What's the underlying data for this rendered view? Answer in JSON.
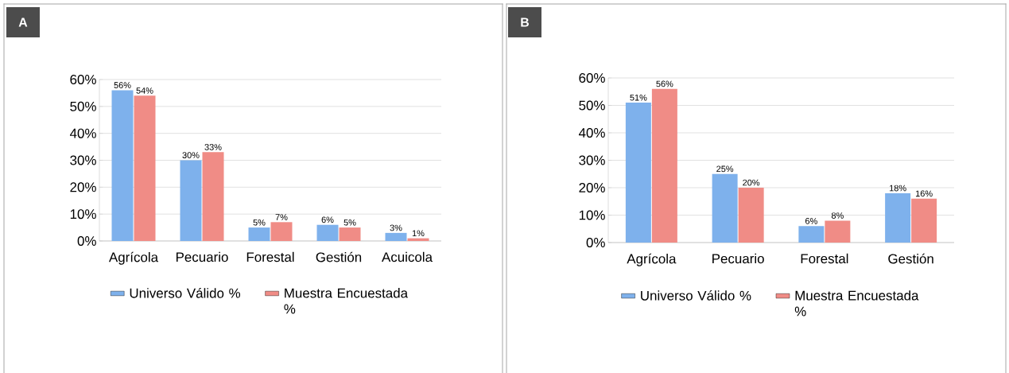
{
  "chart_data": [
    {
      "type": "bar",
      "title": "A",
      "categories": [
        "Agrícola",
        "Pecuario",
        "Forestal",
        "Gestión",
        "Acuicola"
      ],
      "series": [
        {
          "name": "Universo Válido %",
          "color": "#7eb1ec",
          "values": [
            56,
            30,
            5,
            6,
            3
          ],
          "value_labels": [
            "56%",
            "30%",
            "5%",
            "6%",
            "3%"
          ]
        },
        {
          "name": "Muestra Encuestada %",
          "color": "#f08c86",
          "values": [
            54,
            33,
            7,
            5,
            1
          ],
          "value_labels": [
            "54%",
            "33%",
            "7%",
            "5%",
            "1%"
          ]
        }
      ],
      "ylim": [
        0,
        60
      ],
      "yticks": [
        {
          "value": 0,
          "label": "0%"
        },
        {
          "value": 10,
          "label": "10%"
        },
        {
          "value": 20,
          "label": "20%"
        },
        {
          "value": 30,
          "label": "30%"
        },
        {
          "value": 40,
          "label": "40%"
        },
        {
          "value": 50,
          "label": "50%"
        },
        {
          "value": 60,
          "label": "60%"
        }
      ],
      "grid": "y",
      "legend": "bottom"
    },
    {
      "type": "bar",
      "title": "B",
      "categories": [
        "Agrícola",
        "Pecuario",
        "Forestal",
        "Gestión"
      ],
      "series": [
        {
          "name": "Universo Válido %",
          "color": "#7eb1ec",
          "values": [
            51,
            25,
            6,
            18
          ],
          "value_labels": [
            "51%",
            "25%",
            "6%",
            "18%"
          ]
        },
        {
          "name": "Muestra Encuestada %",
          "color": "#f08c86",
          "values": [
            56,
            20,
            8,
            16
          ],
          "value_labels": [
            "56%",
            "20%",
            "8%",
            "16%"
          ]
        }
      ],
      "ylim": [
        0,
        60
      ],
      "yticks": [
        {
          "value": 0,
          "label": "0%"
        },
        {
          "value": 10,
          "label": "10%"
        },
        {
          "value": 20,
          "label": "20%"
        },
        {
          "value": 30,
          "label": "30%"
        },
        {
          "value": 40,
          "label": "40%"
        },
        {
          "value": 50,
          "label": "50%"
        },
        {
          "value": 60,
          "label": "60%"
        }
      ],
      "grid": "y",
      "legend": "bottom"
    }
  ]
}
